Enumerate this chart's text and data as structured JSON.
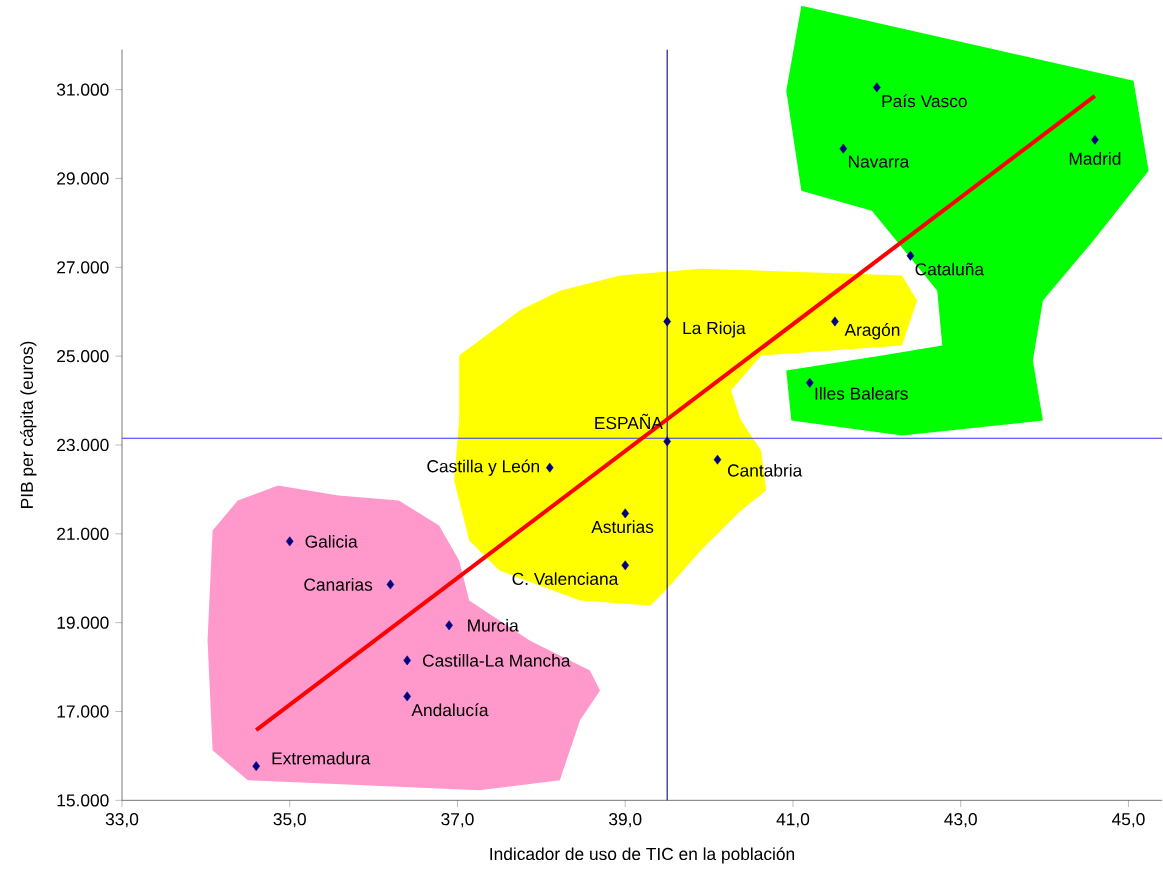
{
  "chart_data": {
    "type": "scatter",
    "xlabel": "Indicador de uso de TIC en la población",
    "ylabel": "PIB per cápita (euros)",
    "xlim": [
      33,
      45.4
    ],
    "ylim": [
      15000,
      31900
    ],
    "xticks": [
      {
        "value": 33,
        "label": "33,0"
      },
      {
        "value": 35,
        "label": "35,0"
      },
      {
        "value": 37,
        "label": "37,0"
      },
      {
        "value": 39,
        "label": "39,0"
      },
      {
        "value": 41,
        "label": "41,0"
      },
      {
        "value": 43,
        "label": "43,0"
      },
      {
        "value": 45,
        "label": "45,0"
      }
    ],
    "yticks": [
      {
        "value": 15000,
        "label": "15.000"
      },
      {
        "value": 17000,
        "label": "17.000"
      },
      {
        "value": 19000,
        "label": "19.000"
      },
      {
        "value": 21000,
        "label": "21.000"
      },
      {
        "value": 23000,
        "label": "23.000"
      },
      {
        "value": 25000,
        "label": "25.000"
      },
      {
        "value": 27000,
        "label": "27.000"
      },
      {
        "value": 29000,
        "label": "29.000"
      },
      {
        "value": 31000,
        "label": "31.000"
      }
    ],
    "marker": "diamond",
    "grid": false,
    "series": [
      {
        "color": "#000080",
        "x": [
          42.0,
          41.6,
          44.6,
          42.4,
          39.5,
          41.5,
          41.2,
          39.5,
          38.1,
          40.1,
          39.0,
          39.0,
          35.0,
          36.2,
          36.9,
          36.4,
          36.4,
          34.6
        ],
        "values": [
          31050,
          29670,
          29870,
          27260,
          25780,
          25780,
          24400,
          23080,
          22490,
          22670,
          21460,
          20290,
          20830,
          19860,
          18940,
          18150,
          17340,
          15770
        ]
      },
      {
        "type": "line",
        "marker": "none",
        "color": "#ff0000",
        "x": [
          34.6,
          44.6
        ],
        "values": [
          16580,
          30860
        ]
      }
    ],
    "ref_lines": [
      {
        "axis": "x",
        "value": 39.5,
        "color": "#000080"
      },
      {
        "axis": "y",
        "value": 23150,
        "color": "#3333ff"
      }
    ],
    "annotations": [
      {
        "text": "País Vasco",
        "x": 42.0,
        "y": 31050
      },
      {
        "text": "Navarra",
        "x": 41.6,
        "y": 29670
      },
      {
        "text": "Madrid",
        "x": 44.6,
        "y": 29870
      },
      {
        "text": "Cataluña",
        "x": 42.4,
        "y": 27260
      },
      {
        "text": "La Rioja",
        "x": 39.5,
        "y": 25780
      },
      {
        "text": "Aragón",
        "x": 41.5,
        "y": 25780
      },
      {
        "text": "Illes Balears",
        "x": 41.2,
        "y": 24400
      },
      {
        "text": "ESPAÑA",
        "x": 39.5,
        "y": 23080
      },
      {
        "text": "Castilla y León",
        "x": 38.1,
        "y": 22490
      },
      {
        "text": "Cantabria",
        "x": 40.1,
        "y": 22670
      },
      {
        "text": "Asturias",
        "x": 39.0,
        "y": 21460
      },
      {
        "text": "C. Valenciana",
        "x": 39.0,
        "y": 20290
      },
      {
        "text": "Galicia",
        "x": 35.0,
        "y": 20830
      },
      {
        "text": "Canarias",
        "x": 36.2,
        "y": 19860
      },
      {
        "text": "Murcia",
        "x": 36.9,
        "y": 18940
      },
      {
        "text": "Castilla-La Mancha",
        "x": 36.4,
        "y": 18150
      },
      {
        "text": "Andalucía",
        "x": 36.4,
        "y": 17340
      },
      {
        "text": "Extremadura",
        "x": 34.6,
        "y": 15770
      }
    ]
  }
}
